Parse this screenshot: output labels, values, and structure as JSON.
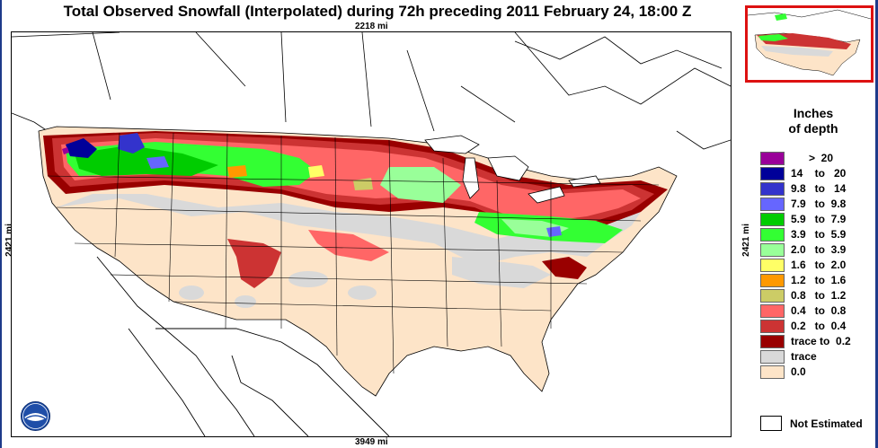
{
  "title": "Total Observed Snowfall (Interpolated) during 72h preceding 2011 February 24, 18:00 Z",
  "dimensions": {
    "top": "2218 mi",
    "bottom": "3949 mi",
    "left": "2421 mi",
    "right": "2421 mi"
  },
  "legend": {
    "title_line1": "Inches",
    "title_line2": "of depth",
    "items": [
      {
        "label": "      >  20",
        "color": "#990099"
      },
      {
        "label": "14    to   20",
        "color": "#000099"
      },
      {
        "label": "9.8   to   14",
        "color": "#3333cc"
      },
      {
        "label": "7.9   to  9.8",
        "color": "#6666ff"
      },
      {
        "label": "5.9   to  7.9",
        "color": "#00cc00"
      },
      {
        "label": "3.9   to  5.9",
        "color": "#33ff33"
      },
      {
        "label": "2.0   to  3.9",
        "color": "#99ff99"
      },
      {
        "label": "1.6   to  2.0",
        "color": "#ffff66"
      },
      {
        "label": "1.2   to  1.6",
        "color": "#ff9900"
      },
      {
        "label": "0.8   to  1.2",
        "color": "#cccc66"
      },
      {
        "label": "0.4   to  0.8",
        "color": "#ff6666"
      },
      {
        "label": "0.2   to  0.4",
        "color": "#cc3333"
      },
      {
        "label": "trace to  0.2",
        "color": "#990000"
      },
      {
        "label": "trace",
        "color": "#d9d9d9"
      },
      {
        "label": "0.0",
        "color": "#fde4c8"
      }
    ],
    "not_estimated": {
      "label": "Not Estimated",
      "color": "#ffffff"
    }
  },
  "logo": {
    "icon": "noaa-logo-icon",
    "text": "NOAA"
  },
  "colors": {
    "frame": "#1e3a8a",
    "inset_border": "#dd1111",
    "no_snow": "#fde4c8",
    "trace": "#d9d9d9"
  }
}
